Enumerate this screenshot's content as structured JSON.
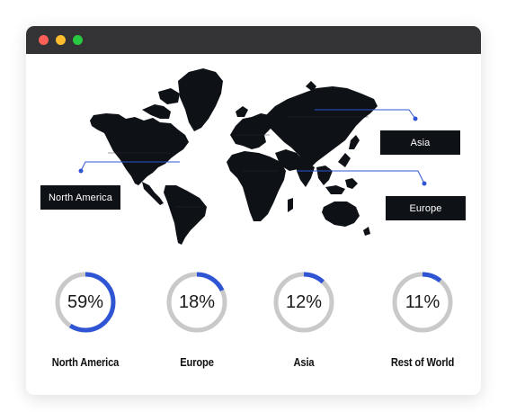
{
  "window": {
    "dots": [
      "#fe5f57",
      "#febc2e",
      "#28c840"
    ]
  },
  "colors": {
    "accent": "#2f55d4",
    "track": "#c9c9c9",
    "map": "#0e1116",
    "label_bg": "#0e1116"
  },
  "map": {
    "labels": {
      "north_america": "North America",
      "asia": "Asia",
      "europe": "Europe"
    }
  },
  "stats": [
    {
      "percent": 59,
      "percent_label": "59%",
      "region": "North America"
    },
    {
      "percent": 18,
      "percent_label": "18%",
      "region": "Europe"
    },
    {
      "percent": 12,
      "percent_label": "12%",
      "region": "Asia"
    },
    {
      "percent": 11,
      "percent_label": "11%",
      "region": "Rest of World"
    }
  ]
}
